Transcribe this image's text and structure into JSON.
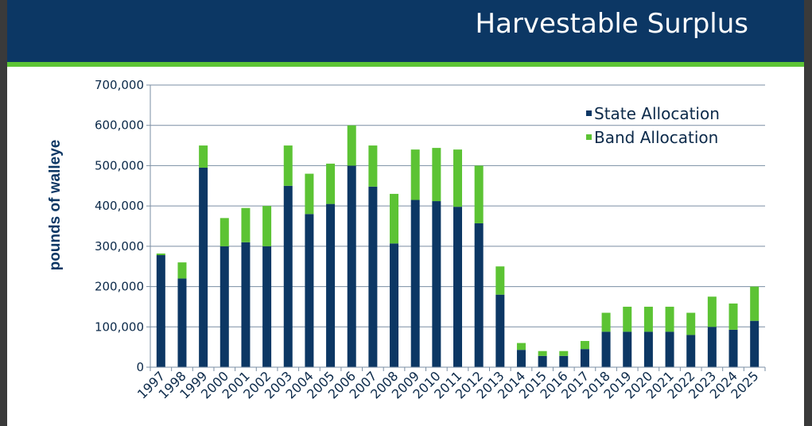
{
  "slide": {
    "title": "Harvestable Surplus"
  },
  "colors": {
    "title_bar": "#0c3764",
    "accent_bar": "#5cc334",
    "state": "#0c3764",
    "band": "#5cc334",
    "grid": "#7a8ea3"
  },
  "chart_data": {
    "type": "bar",
    "stacked": true,
    "title": "",
    "xlabel": "",
    "ylabel": "pounds of walleye",
    "ylim": [
      0,
      700000
    ],
    "yticks": [
      0,
      100000,
      200000,
      300000,
      400000,
      500000,
      600000,
      700000
    ],
    "ytick_labels": [
      "0",
      "100,000",
      "200,000",
      "300,000",
      "400,000",
      "500,000",
      "600,000",
      "700,000"
    ],
    "grid": true,
    "legend_position": "top-right",
    "categories": [
      "1997",
      "1998",
      "1999",
      "2000",
      "2001",
      "2002",
      "2003",
      "2004",
      "2005",
      "2006",
      "2007",
      "2008",
      "2009",
      "2010",
      "2011",
      "2012",
      "2013",
      "2014",
      "2015",
      "2016",
      "2017",
      "2018",
      "2019",
      "2020",
      "2021",
      "2022",
      "2023",
      "2024",
      "2025"
    ],
    "series": [
      {
        "name": "State Allocation",
        "color": "#0c3764",
        "values": [
          278000,
          220000,
          495000,
          300000,
          310000,
          300000,
          450000,
          380000,
          405000,
          500000,
          448000,
          307000,
          415000,
          412000,
          398000,
          357000,
          180000,
          43000,
          28000,
          28000,
          45000,
          88000,
          88000,
          88000,
          88000,
          80000,
          100000,
          93000,
          115000
        ]
      },
      {
        "name": "Band Allocation",
        "color": "#5cc334",
        "values": [
          4000,
          40000,
          55000,
          70000,
          85000,
          100000,
          100000,
          100000,
          100000,
          100000,
          102000,
          123000,
          125000,
          132000,
          142000,
          143000,
          70000,
          17000,
          12000,
          12000,
          20000,
          47000,
          62000,
          62000,
          62000,
          55000,
          75000,
          65000,
          85000
        ]
      }
    ]
  }
}
